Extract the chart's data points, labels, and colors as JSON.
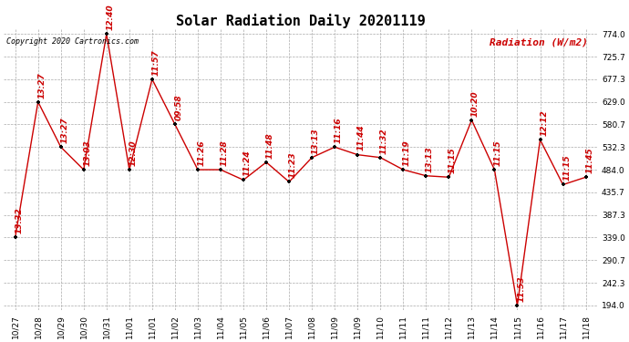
{
  "title": "Solar Radiation Daily 20201119",
  "ylabel": "Radiation (W/m2)",
  "copyright": "Copyright 2020 Cartronics.com",
  "background_color": "#ffffff",
  "grid_color": "#aaaaaa",
  "line_color": "#cc0000",
  "marker_color": "#000000",
  "ylim": [
    194.0,
    774.0
  ],
  "yticks": [
    194.0,
    242.3,
    290.7,
    339.0,
    387.3,
    435.7,
    484.0,
    532.3,
    580.7,
    629.0,
    677.3,
    725.7,
    774.0
  ],
  "xtick_labels": [
    "10/27",
    "10/28",
    "10/29",
    "10/30",
    "10/31",
    "11/01",
    "11/01",
    "11/02",
    "11/03",
    "11/04",
    "11/05",
    "11/06",
    "11/07",
    "11/08",
    "11/09",
    "11/09",
    "11/10",
    "11/11",
    "11/11",
    "11/12",
    "11/13",
    "11/14",
    "11/15",
    "11/16",
    "11/17",
    "11/18"
  ],
  "x_indices": [
    0,
    1,
    2,
    3,
    4,
    5,
    6,
    7,
    8,
    9,
    10,
    11,
    12,
    13,
    14,
    15,
    16,
    17,
    18,
    19,
    20,
    21,
    22,
    23,
    24,
    25
  ],
  "values": [
    339.0,
    629.0,
    532.3,
    484.0,
    774.0,
    484.0,
    677.3,
    580.7,
    484.0,
    484.0,
    462.0,
    500.0,
    458.0,
    510.0,
    532.3,
    516.0,
    510.0,
    484.0,
    471.0,
    468.0,
    590.0,
    484.0,
    194.0,
    548.0,
    452.0,
    468.0
  ],
  "labels": [
    "13:32",
    "13:27",
    "13:27",
    "13:03",
    "12:40",
    "12:30",
    "11:57",
    "09:58",
    "11:26",
    "11:28",
    "11:24",
    "11:48",
    "11:23",
    "13:13",
    "11:16",
    "11:44",
    "11:32",
    "11:19",
    "13:13",
    "11:15",
    "10:20",
    "11:15",
    "11:53",
    "12:12",
    "11:15",
    "11:45"
  ],
  "title_fontsize": 11,
  "tick_fontsize": 6.5,
  "annotation_fontsize": 6.5,
  "ylabel_fontsize": 8,
  "copyright_fontsize": 6
}
